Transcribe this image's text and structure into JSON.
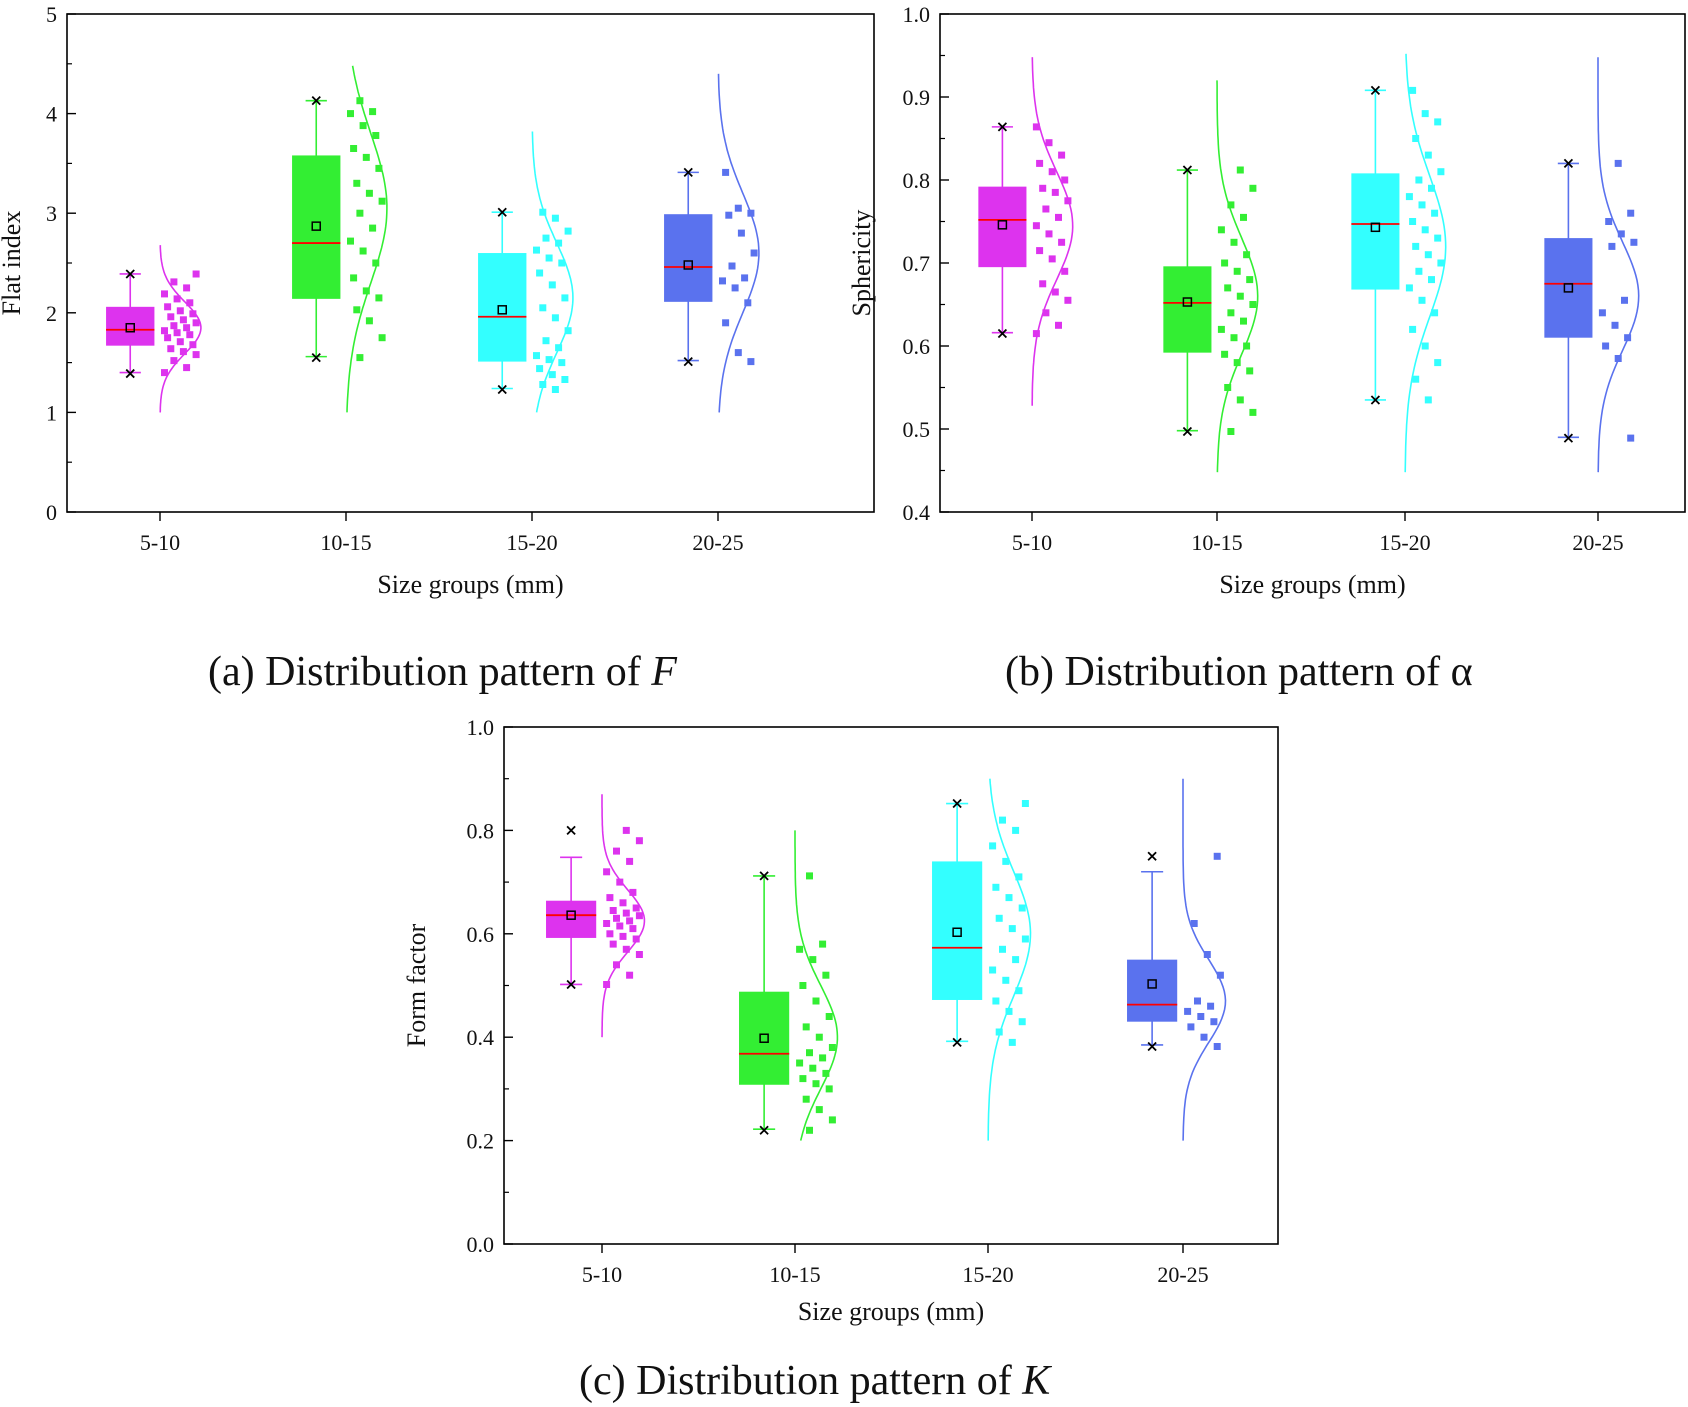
{
  "figure": {
    "captions": [
      {
        "prefix": "(a) Distribution pattern of ",
        "symbol": "F"
      },
      {
        "prefix": "(b) Distribution pattern of ",
        "symbol": "α"
      },
      {
        "prefix": "(c) Distribution pattern of ",
        "symbol": "K"
      }
    ]
  },
  "colors": {
    "groups": [
      "#dd33ee",
      "#33ee33",
      "#33ffff",
      "#5a72ee"
    ],
    "median": "#ff0000",
    "axis": "#000000"
  },
  "chart_data": [
    {
      "type": "box",
      "ylabel": "Flat index",
      "xlabel": "Size groups (mm)",
      "categories": [
        "5-10",
        "10-15",
        "15-20",
        "20-25"
      ],
      "ylim": [
        0,
        5
      ],
      "yticks": [
        0,
        1,
        2,
        3,
        4,
        5
      ],
      "ytick_labels": [
        "0",
        "1",
        "2",
        "3",
        "4",
        "5"
      ],
      "boxes": [
        {
          "q1": 1.67,
          "median": 1.83,
          "q3": 2.06,
          "mean": 1.85,
          "whisker_low": 1.4,
          "whisker_high": 2.39,
          "min": 1.39,
          "max": 2.39
        },
        {
          "q1": 2.14,
          "median": 2.7,
          "q3": 3.58,
          "mean": 2.87,
          "whisker_low": 1.56,
          "whisker_high": 4.13,
          "min": 1.55,
          "max": 4.13
        },
        {
          "q1": 1.51,
          "median": 1.96,
          "q3": 2.6,
          "mean": 2.03,
          "whisker_low": 1.24,
          "whisker_high": 3.01,
          "min": 1.23,
          "max": 3.01
        },
        {
          "q1": 2.11,
          "median": 2.46,
          "q3": 2.99,
          "mean": 2.48,
          "whisker_low": 1.52,
          "whisker_high": 3.41,
          "min": 1.51,
          "max": 3.41
        }
      ],
      "curves": [
        {
          "y_min": 1.0,
          "y_max": 2.68,
          "mu": 1.85,
          "sigma": 0.26
        },
        {
          "y_min": 1.0,
          "y_max": 4.48,
          "mu": 3.05,
          "sigma": 0.75
        },
        {
          "y_min": 1.0,
          "y_max": 3.82,
          "mu": 2.15,
          "sigma": 0.55
        },
        {
          "y_min": 1.0,
          "y_max": 4.4,
          "mu": 2.6,
          "sigma": 0.6
        }
      ],
      "points": [
        [
          1.4,
          1.45,
          1.52,
          1.58,
          1.61,
          1.64,
          1.68,
          1.71,
          1.75,
          1.78,
          1.8,
          1.82,
          1.85,
          1.87,
          1.9,
          1.93,
          1.96,
          1.99,
          2.02,
          2.06,
          2.1,
          2.14,
          2.19,
          2.25,
          2.31,
          2.39
        ],
        [
          1.55,
          1.75,
          1.92,
          2.03,
          2.15,
          2.22,
          2.35,
          2.5,
          2.62,
          2.72,
          2.85,
          3.0,
          3.12,
          3.2,
          3.3,
          3.45,
          3.56,
          3.65,
          3.78,
          3.88,
          4.0,
          4.02,
          4.13
        ],
        [
          1.23,
          1.28,
          1.33,
          1.38,
          1.44,
          1.5,
          1.53,
          1.57,
          1.65,
          1.72,
          1.82,
          1.95,
          2.05,
          2.15,
          2.28,
          2.4,
          2.5,
          2.55,
          2.63,
          2.7,
          2.75,
          2.82,
          2.95,
          3.01
        ],
        [
          1.51,
          1.6,
          1.9,
          2.1,
          2.25,
          2.32,
          2.35,
          2.47,
          2.6,
          2.8,
          2.98,
          3.0,
          3.05,
          3.41
        ]
      ]
    },
    {
      "type": "box",
      "ylabel": "Sphericity",
      "xlabel": "Size groups (mm)",
      "categories": [
        "5-10",
        "10-15",
        "15-20",
        "20-25"
      ],
      "ylim": [
        0.4,
        1.0
      ],
      "yticks": [
        0.4,
        0.5,
        0.6,
        0.7,
        0.8,
        0.9,
        1.0
      ],
      "ytick_labels": [
        "0.4",
        "0.5",
        "0.6",
        "0.7",
        "0.8",
        "0.9",
        "1.0"
      ],
      "boxes": [
        {
          "q1": 0.695,
          "median": 0.752,
          "q3": 0.792,
          "mean": 0.746,
          "whisker_low": 0.616,
          "whisker_high": 0.864,
          "min": 0.615,
          "max": 0.864
        },
        {
          "q1": 0.592,
          "median": 0.652,
          "q3": 0.696,
          "mean": 0.653,
          "whisker_low": 0.498,
          "whisker_high": 0.812,
          "min": 0.497,
          "max": 0.812
        },
        {
          "q1": 0.668,
          "median": 0.747,
          "q3": 0.808,
          "mean": 0.743,
          "whisker_low": 0.535,
          "whisker_high": 0.908,
          "min": 0.535,
          "max": 0.908
        },
        {
          "q1": 0.61,
          "median": 0.675,
          "q3": 0.73,
          "mean": 0.67,
          "whisker_low": 0.49,
          "whisker_high": 0.82,
          "min": 0.489,
          "max": 0.82
        }
      ],
      "curves": [
        {
          "y_min": 0.528,
          "y_max": 0.948,
          "mu": 0.745,
          "sigma": 0.065
        },
        {
          "y_min": 0.448,
          "y_max": 0.92,
          "mu": 0.66,
          "sigma": 0.07
        },
        {
          "y_min": 0.448,
          "y_max": 0.952,
          "mu": 0.72,
          "sigma": 0.085
        },
        {
          "y_min": 0.448,
          "y_max": 0.948,
          "mu": 0.66,
          "sigma": 0.065
        }
      ],
      "points": [
        [
          0.615,
          0.625,
          0.64,
          0.655,
          0.665,
          0.675,
          0.69,
          0.705,
          0.715,
          0.725,
          0.735,
          0.745,
          0.755,
          0.765,
          0.775,
          0.785,
          0.79,
          0.8,
          0.81,
          0.82,
          0.83,
          0.845,
          0.864
        ],
        [
          0.497,
          0.52,
          0.535,
          0.55,
          0.57,
          0.58,
          0.59,
          0.6,
          0.61,
          0.62,
          0.63,
          0.64,
          0.65,
          0.66,
          0.67,
          0.68,
          0.69,
          0.7,
          0.71,
          0.725,
          0.74,
          0.755,
          0.77,
          0.79,
          0.812
        ],
        [
          0.535,
          0.56,
          0.58,
          0.6,
          0.62,
          0.64,
          0.655,
          0.67,
          0.68,
          0.69,
          0.7,
          0.71,
          0.72,
          0.73,
          0.74,
          0.75,
          0.76,
          0.77,
          0.78,
          0.79,
          0.8,
          0.81,
          0.83,
          0.85,
          0.87,
          0.88,
          0.908
        ],
        [
          0.489,
          0.585,
          0.6,
          0.61,
          0.625,
          0.64,
          0.655,
          0.72,
          0.725,
          0.735,
          0.75,
          0.76,
          0.82
        ]
      ]
    },
    {
      "type": "box",
      "ylabel": "Form factor",
      "xlabel": "Size groups (mm)",
      "categories": [
        "5-10",
        "10-15",
        "15-20",
        "20-25"
      ],
      "ylim": [
        0.0,
        1.0
      ],
      "yticks": [
        0.0,
        0.2,
        0.4,
        0.6,
        0.8,
        1.0
      ],
      "ytick_labels": [
        "0.0",
        "0.2",
        "0.4",
        "0.6",
        "0.8",
        "1.0"
      ],
      "boxes": [
        {
          "q1": 0.592,
          "median": 0.636,
          "q3": 0.664,
          "mean": 0.636,
          "whisker_low": 0.502,
          "whisker_high": 0.748,
          "min": 0.502,
          "max": 0.8
        },
        {
          "q1": 0.308,
          "median": 0.368,
          "q3": 0.488,
          "mean": 0.398,
          "whisker_low": 0.222,
          "whisker_high": 0.712,
          "min": 0.22,
          "max": 0.712
        },
        {
          "q1": 0.472,
          "median": 0.573,
          "q3": 0.74,
          "mean": 0.603,
          "whisker_low": 0.392,
          "whisker_high": 0.852,
          "min": 0.39,
          "max": 0.852
        },
        {
          "q1": 0.43,
          "median": 0.463,
          "q3": 0.55,
          "mean": 0.503,
          "whisker_low": 0.385,
          "whisker_high": 0.72,
          "min": 0.382,
          "max": 0.75
        }
      ],
      "curves": [
        {
          "y_min": 0.4,
          "y_max": 0.87,
          "mu": 0.625,
          "sigma": 0.06
        },
        {
          "y_min": 0.2,
          "y_max": 0.8,
          "mu": 0.4,
          "sigma": 0.1
        },
        {
          "y_min": 0.2,
          "y_max": 0.9,
          "mu": 0.6,
          "sigma": 0.12
        },
        {
          "y_min": 0.2,
          "y_max": 0.9,
          "mu": 0.47,
          "sigma": 0.08
        }
      ],
      "points": [
        [
          0.502,
          0.52,
          0.54,
          0.56,
          0.57,
          0.58,
          0.59,
          0.595,
          0.6,
          0.61,
          0.615,
          0.62,
          0.625,
          0.63,
          0.635,
          0.64,
          0.645,
          0.65,
          0.66,
          0.67,
          0.68,
          0.7,
          0.72,
          0.74,
          0.76,
          0.78,
          0.8
        ],
        [
          0.22,
          0.24,
          0.26,
          0.28,
          0.3,
          0.31,
          0.32,
          0.33,
          0.34,
          0.35,
          0.36,
          0.37,
          0.38,
          0.4,
          0.42,
          0.44,
          0.47,
          0.5,
          0.52,
          0.55,
          0.57,
          0.58,
          0.712
        ],
        [
          0.39,
          0.41,
          0.43,
          0.45,
          0.47,
          0.49,
          0.51,
          0.53,
          0.55,
          0.57,
          0.59,
          0.61,
          0.63,
          0.65,
          0.67,
          0.69,
          0.71,
          0.74,
          0.77,
          0.8,
          0.82,
          0.852
        ],
        [
          0.382,
          0.4,
          0.42,
          0.43,
          0.44,
          0.45,
          0.46,
          0.47,
          0.52,
          0.56,
          0.62,
          0.75
        ]
      ]
    }
  ]
}
